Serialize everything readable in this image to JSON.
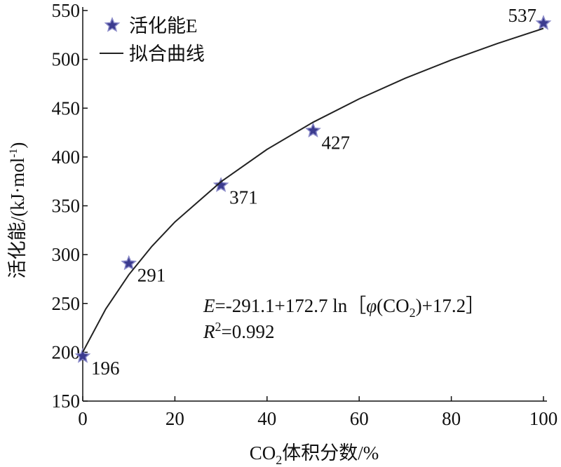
{
  "chart_data": {
    "type": "scatter",
    "xlabel_parts": [
      "CO",
      "2",
      "体积分数/%"
    ],
    "ylabel_parts": [
      "活化能/(kJ·mol",
      "-1",
      ")"
    ],
    "xlim": [
      0,
      100
    ],
    "xticks": [
      0,
      20,
      40,
      60,
      80,
      100
    ],
    "ylim": [
      150,
      550
    ],
    "yticks": [
      150,
      200,
      250,
      300,
      350,
      400,
      450,
      500,
      550
    ],
    "legend": "upper left",
    "series": [
      {
        "name": "活化能E",
        "mode": "markers",
        "marker": "star",
        "color": "#3b3b8f",
        "x": [
          0,
          10,
          30,
          50,
          100
        ],
        "values": [
          196,
          291,
          371,
          427,
          537
        ]
      },
      {
        "name": "拟合曲线",
        "mode": "line",
        "color": "#222222",
        "x": [
          0,
          5,
          10,
          15,
          20,
          30,
          40,
          50,
          60,
          70,
          80,
          90,
          100
        ],
        "values": [
          200.2,
          244.3,
          279.4,
          308.5,
          333.4,
          374.6,
          407.8,
          435.6,
          459.5,
          480.6,
          499.3,
          516.2,
          531.7
        ]
      }
    ],
    "equation_parts": [
      "E",
      "=-291.1+172.7 ln［",
      "φ",
      "(CO",
      "2",
      ")+17.2］"
    ],
    "r2_parts": [
      "R",
      "2",
      "=0.992"
    ]
  }
}
